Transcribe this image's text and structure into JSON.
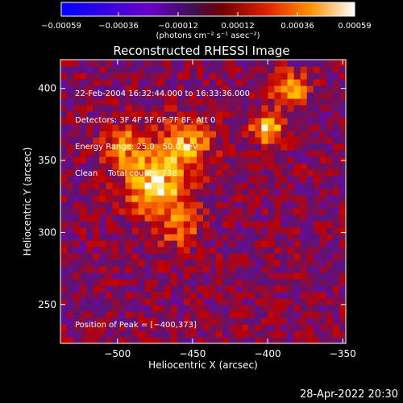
{
  "chart_data": {
    "type": "heatmap",
    "title": "Reconstructed RHESSI Image",
    "xlabel": "Heliocentric X (arcsec)",
    "ylabel": "Heliocentric Y (arcsec)",
    "xlim": [
      -538,
      -348
    ],
    "ylim": [
      223,
      420
    ],
    "x_ticks": [
      -500,
      -450,
      -400,
      -350
    ],
    "y_ticks": [
      250,
      300,
      350,
      400
    ],
    "x_tick_labels": [
      "−500",
      "−450",
      "−400",
      "−350"
    ],
    "y_tick_labels": [
      "250",
      "300",
      "350",
      "400"
    ],
    "colorbar": {
      "range": [
        -0.00059,
        0.00059
      ],
      "ticks": [
        -0.00059,
        -0.00036,
        -0.00012,
        0.00012,
        0.00036,
        0.00059
      ],
      "tick_labels": [
        "−0.00059",
        "−0.00036",
        "−0.00012",
        "0.00012",
        "0.00036",
        "0.00059"
      ],
      "units_label": "(photons cm⁻² s⁻¹ asec⁻²)"
    },
    "annotations": [
      "22-Feb-2004 16:32:44.000 to 16:33:36.000",
      "Detectors: 3F 4F 5F 6F 7F 8F, Att 0",
      "Energy Range: 25.0 - 50.0 keV",
      "Clean    Total counts: 738"
    ],
    "peak_label": "Position of Peak = [−400,373]",
    "sources": [
      {
        "x": -475,
        "y": 333,
        "amplitude": 0.00059,
        "width": 14
      },
      {
        "x": -455,
        "y": 362,
        "amplitude": 0.00048,
        "width": 12
      },
      {
        "x": -495,
        "y": 360,
        "amplitude": 0.00035,
        "width": 10
      },
      {
        "x": -400,
        "y": 373,
        "amplitude": 0.00059,
        "width": 7
      },
      {
        "x": -385,
        "y": 400,
        "amplitude": 0.00045,
        "width": 8
      },
      {
        "x": -460,
        "y": 305,
        "amplitude": 0.0003,
        "width": 10
      }
    ],
    "colormap": [
      "#0000ff",
      "#7a00c8",
      "#5a1478",
      "#c00000",
      "#ff7000",
      "#ffd000",
      "#ffffff"
    ]
  },
  "footer": {
    "timestamp": "28-Apr-2022 20:30"
  }
}
